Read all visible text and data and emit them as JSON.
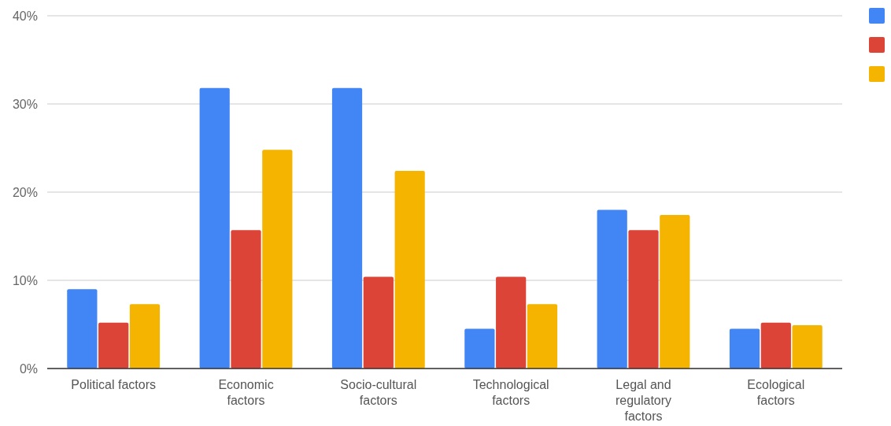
{
  "chart_data": {
    "type": "bar",
    "categories": [
      "Political factors",
      "Economic factors",
      "Socio-cultural factors",
      "Technological factors",
      "Legal and regulatory factors",
      "Ecological factors"
    ],
    "series": [
      {
        "color": "#4285f4",
        "values": [
          9.0,
          31.8,
          31.8,
          4.5,
          18.0,
          4.5
        ]
      },
      {
        "color": "#db4437",
        "values": [
          5.2,
          15.7,
          10.4,
          10.4,
          15.7,
          5.2
        ]
      },
      {
        "color": "#f4b400",
        "values": [
          7.3,
          24.8,
          22.4,
          7.3,
          17.4,
          4.9
        ]
      }
    ],
    "ylim": [
      0,
      40
    ],
    "yticks": [
      {
        "value": 0,
        "label": "0%"
      },
      {
        "value": 10,
        "label": "10%"
      },
      {
        "value": 20,
        "label": "20%"
      },
      {
        "value": 30,
        "label": "30%"
      },
      {
        "value": 40,
        "label": "40%"
      }
    ],
    "grid": "y"
  }
}
